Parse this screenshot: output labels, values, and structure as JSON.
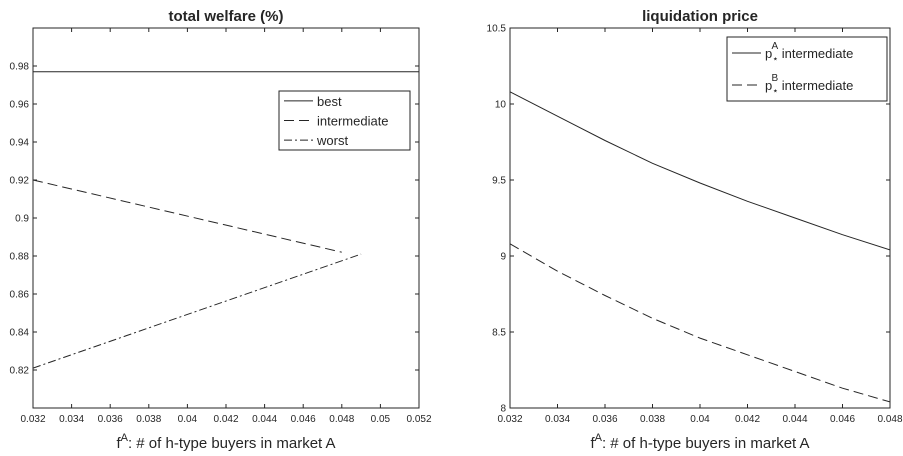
{
  "chart_data": [
    {
      "type": "line",
      "title": "total welfare (%)",
      "xlabel": "f^A: # of h-type buyers in market A",
      "ylabel": "",
      "xlim": [
        0.032,
        0.052
      ],
      "ylim": [
        0.8,
        1.0
      ],
      "x_ticks": [
        "0.032",
        "0.034",
        "0.036",
        "0.038",
        "0.04",
        "0.042",
        "0.044",
        "0.046",
        "0.048",
        "0.05",
        "0.052"
      ],
      "y_ticks": [
        "0.82",
        "0.84",
        "0.86",
        "0.88",
        "0.9",
        "0.92",
        "0.94",
        "0.96",
        "0.98"
      ],
      "grid": false,
      "legend_position": "upper-right",
      "series": [
        {
          "name": "best",
          "dash": "solid",
          "x": [
            0.032,
            0.052
          ],
          "y": [
            0.977,
            0.977
          ]
        },
        {
          "name": "intermediate",
          "dash": "dashed",
          "x": [
            0.032,
            0.048
          ],
          "y": [
            0.92,
            0.882
          ]
        },
        {
          "name": "worst",
          "dash": "dashdot",
          "x": [
            0.032,
            0.049
          ],
          "y": [
            0.821,
            0.881
          ]
        }
      ]
    },
    {
      "type": "line",
      "title": "liquidation price",
      "xlabel": "f^A: # of h-type buyers in market A",
      "ylabel": "",
      "xlim": [
        0.032,
        0.048
      ],
      "ylim": [
        8,
        10.5
      ],
      "x_ticks": [
        "0.032",
        "0.034",
        "0.036",
        "0.038",
        "0.04",
        "0.042",
        "0.044",
        "0.046",
        "0.048"
      ],
      "y_ticks": [
        "8",
        "8.5",
        "9",
        "9.5",
        "10",
        "10.5"
      ],
      "grid": false,
      "legend_position": "upper-right",
      "series": [
        {
          "name": "p*^A intermediate",
          "dash": "solid",
          "x": [
            0.032,
            0.034,
            0.036,
            0.038,
            0.04,
            0.042,
            0.044,
            0.046,
            0.048
          ],
          "y": [
            10.08,
            9.92,
            9.76,
            9.61,
            9.48,
            9.36,
            9.25,
            9.14,
            9.04
          ]
        },
        {
          "name": "p*^B intermediate",
          "dash": "dashed",
          "x": [
            0.032,
            0.034,
            0.036,
            0.038,
            0.04,
            0.042,
            0.044,
            0.046,
            0.048
          ],
          "y": [
            9.08,
            8.9,
            8.74,
            8.59,
            8.46,
            8.35,
            8.24,
            8.13,
            8.04
          ]
        }
      ]
    }
  ]
}
